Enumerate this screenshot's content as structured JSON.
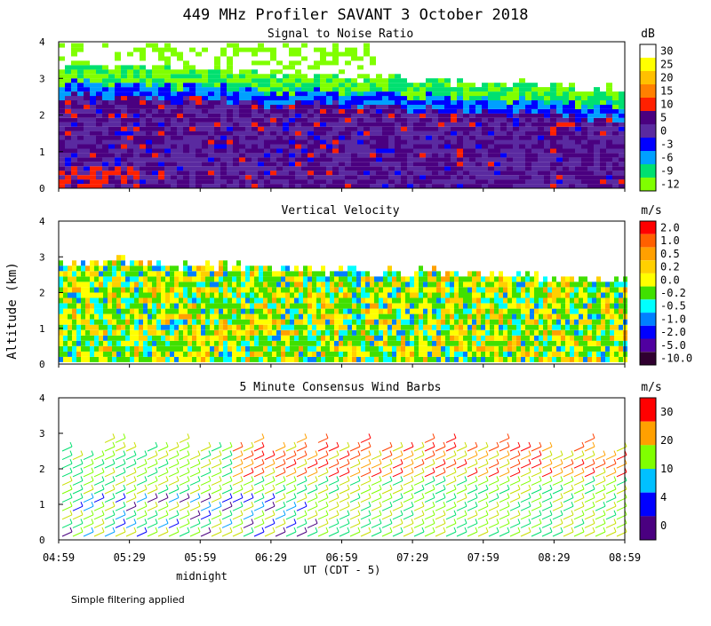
{
  "title": "449 MHz Profiler SAVANT  3 October 2018",
  "y_axis_label": "Altitude (km)",
  "x_axis_label": "UT  (CDT - 5)",
  "midnight_label": "midnight",
  "footer_note": "Simple filtering applied",
  "x_ticks": [
    "04:59",
    "05:29",
    "05:59",
    "06:29",
    "06:59",
    "07:29",
    "07:59",
    "08:29",
    "08:59"
  ],
  "chart_data": [
    {
      "type": "heatmap",
      "title": "Signal to Noise Ratio",
      "unit": "dB",
      "ylim": [
        0,
        4
      ],
      "y_ticks": [
        "0",
        "1",
        "2",
        "3",
        "4"
      ],
      "colorbar": {
        "labels": [
          "30",
          "25",
          "20",
          "15",
          "10",
          "5",
          "0",
          "-3",
          "-6",
          "-9",
          "-12"
        ],
        "colors": [
          "#ffffff",
          "#ffff00",
          "#ffc000",
          "#ff8000",
          "#ff2000",
          "#4a0080",
          "#5a2aa0",
          "#0000ff",
          "#00a0ff",
          "#00e070",
          "#80ff00"
        ]
      }
    },
    {
      "type": "heatmap",
      "title": "Vertical Velocity",
      "unit": "m/s",
      "ylim": [
        0,
        4
      ],
      "y_ticks": [
        "0",
        "1",
        "2",
        "3",
        "4"
      ],
      "colorbar": {
        "labels": [
          "2.0",
          "1.0",
          "0.5",
          "0.2",
          "0.0",
          "-0.2",
          "-0.5",
          "-1.0",
          "-2.0",
          "-5.0",
          "-10.0"
        ],
        "colors": [
          "#ff0000",
          "#ff6000",
          "#ffa000",
          "#ffd000",
          "#ffff00",
          "#40e000",
          "#00ffff",
          "#0080ff",
          "#0000ff",
          "#5000a0",
          "#300030"
        ]
      }
    },
    {
      "type": "scatter",
      "title": "5 Minute Consensus Wind Barbs",
      "unit": "m/s",
      "ylim": [
        0,
        4
      ],
      "y_ticks": [
        "0",
        "1",
        "2",
        "3",
        "4"
      ],
      "colorbar": {
        "labels": [
          "30",
          "20",
          "10",
          "4",
          "0"
        ],
        "colors": [
          "#ff0000",
          "#ffa000",
          "#80ff00",
          "#00c0ff",
          "#0000ff",
          "#4a0080"
        ]
      }
    }
  ]
}
